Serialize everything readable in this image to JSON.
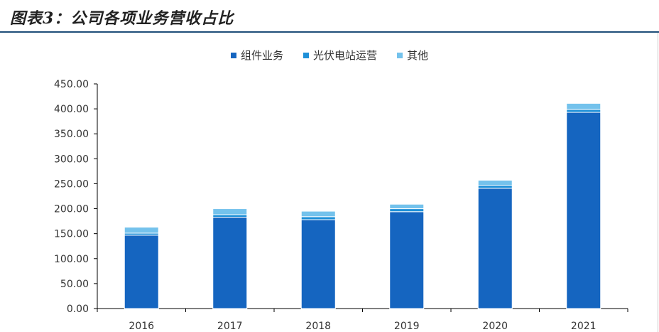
{
  "header": {
    "title": "图表3：公司各项业务营收占比"
  },
  "chart_data": {
    "type": "bar",
    "stacked": true,
    "title": "",
    "xlabel": "",
    "ylabel": "",
    "categories": [
      "2016",
      "2017",
      "2018",
      "2019",
      "2020",
      "2021"
    ],
    "series": [
      {
        "name": "组件业务",
        "color": "#1565c0",
        "values": [
          147,
          183,
          178,
          194,
          241,
          393
        ]
      },
      {
        "name": "光伏电站运营",
        "color": "#1e90d8",
        "values": [
          4,
          5,
          6,
          6,
          6,
          6
        ]
      },
      {
        "name": "其他",
        "color": "#74c2ec",
        "values": [
          12,
          12,
          11,
          9,
          10,
          12
        ]
      }
    ],
    "ylim": [
      0,
      450
    ],
    "yticks": [
      "0.00",
      "50.00",
      "100.00",
      "150.00",
      "200.00",
      "250.00",
      "300.00",
      "350.00",
      "400.00",
      "450.00"
    ],
    "legend_position": "top-center",
    "grid": false
  }
}
